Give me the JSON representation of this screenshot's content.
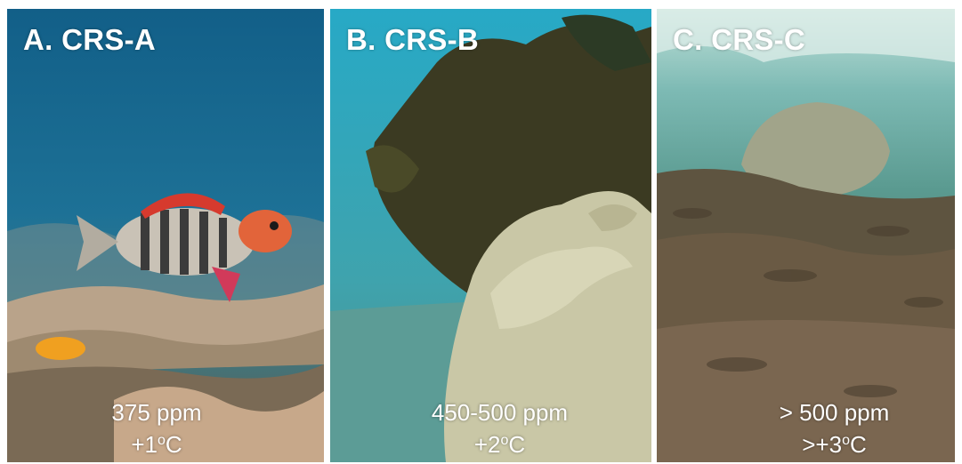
{
  "panels": [
    {
      "label": "A. CRS-A",
      "co2": "375 ppm",
      "temp_prefix": "+1",
      "temp_sup": "o",
      "temp_unit": "C",
      "colors": {
        "water": "#1d6f93",
        "reef": "#b79e83"
      }
    },
    {
      "label": "B. CRS-B",
      "co2": "450-500 ppm",
      "temp_prefix": "+2",
      "temp_sup": "o",
      "temp_unit": "C",
      "colors": {
        "water": "#2aa3bf",
        "reef": "#3a3a22"
      }
    },
    {
      "label": "C. CRS-C",
      "co2": "> 500 ppm",
      "temp_prefix": ">+3",
      "temp_sup": "o",
      "temp_unit": "C",
      "colors": {
        "water": "#6fb3b3",
        "reef": "#5b4a38"
      }
    }
  ]
}
